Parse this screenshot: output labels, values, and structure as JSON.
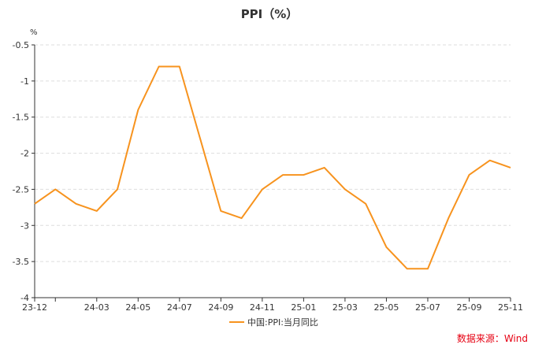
{
  "chart_data": {
    "type": "line",
    "title": "PPI（%）",
    "y_unit": "%",
    "xlabel": "",
    "ylabel": "",
    "ylim": [
      -4,
      -0.5
    ],
    "yticks": [
      -0.5,
      -1,
      -1.5,
      -2,
      -2.5,
      -3,
      -3.5,
      -4
    ],
    "ytick_labels": [
      "-0.5",
      "-1",
      "-1.5",
      "-2",
      "-2.5",
      "-3",
      "-3.5",
      "-4"
    ],
    "x": [
      "23-12",
      "24-01",
      "24-02",
      "24-03",
      "24-04",
      "24-05",
      "24-06",
      "24-07",
      "24-08",
      "24-09",
      "24-10",
      "24-11",
      "24-12",
      "25-01",
      "25-02",
      "25-03",
      "25-04",
      "25-05",
      "25-06",
      "25-07",
      "25-08",
      "25-09",
      "25-10",
      "25-11"
    ],
    "xtick_labels": [
      "23-12",
      "",
      "24-03",
      "24-05",
      "24-07",
      "24-09",
      "24-11",
      "25-01",
      "25-03",
      "25-05",
      "25-07",
      "25-09",
      "25-11"
    ],
    "xtick_index": [
      0,
      1,
      3,
      5,
      7,
      9,
      11,
      13,
      15,
      17,
      19,
      21,
      23
    ],
    "series": [
      {
        "name": "中国:PPI:当月同比",
        "color": "#F7931E",
        "values": [
          -2.7,
          -2.5,
          -2.7,
          -2.8,
          -2.5,
          -1.4,
          -0.8,
          -0.8,
          -1.8,
          -2.8,
          -2.9,
          -2.5,
          -2.3,
          -2.3,
          -2.2,
          -2.5,
          -2.7,
          -3.3,
          -3.6,
          -3.6,
          -2.9,
          -2.3,
          -2.1,
          -2.2
        ]
      }
    ],
    "grid": true,
    "legend_position": "bottom-center"
  },
  "source_text": "数据来源：Wind",
  "colors": {
    "line": "#F7931E",
    "source": "#E60012",
    "grid": "#DDDDDD",
    "axis": "#333333"
  }
}
